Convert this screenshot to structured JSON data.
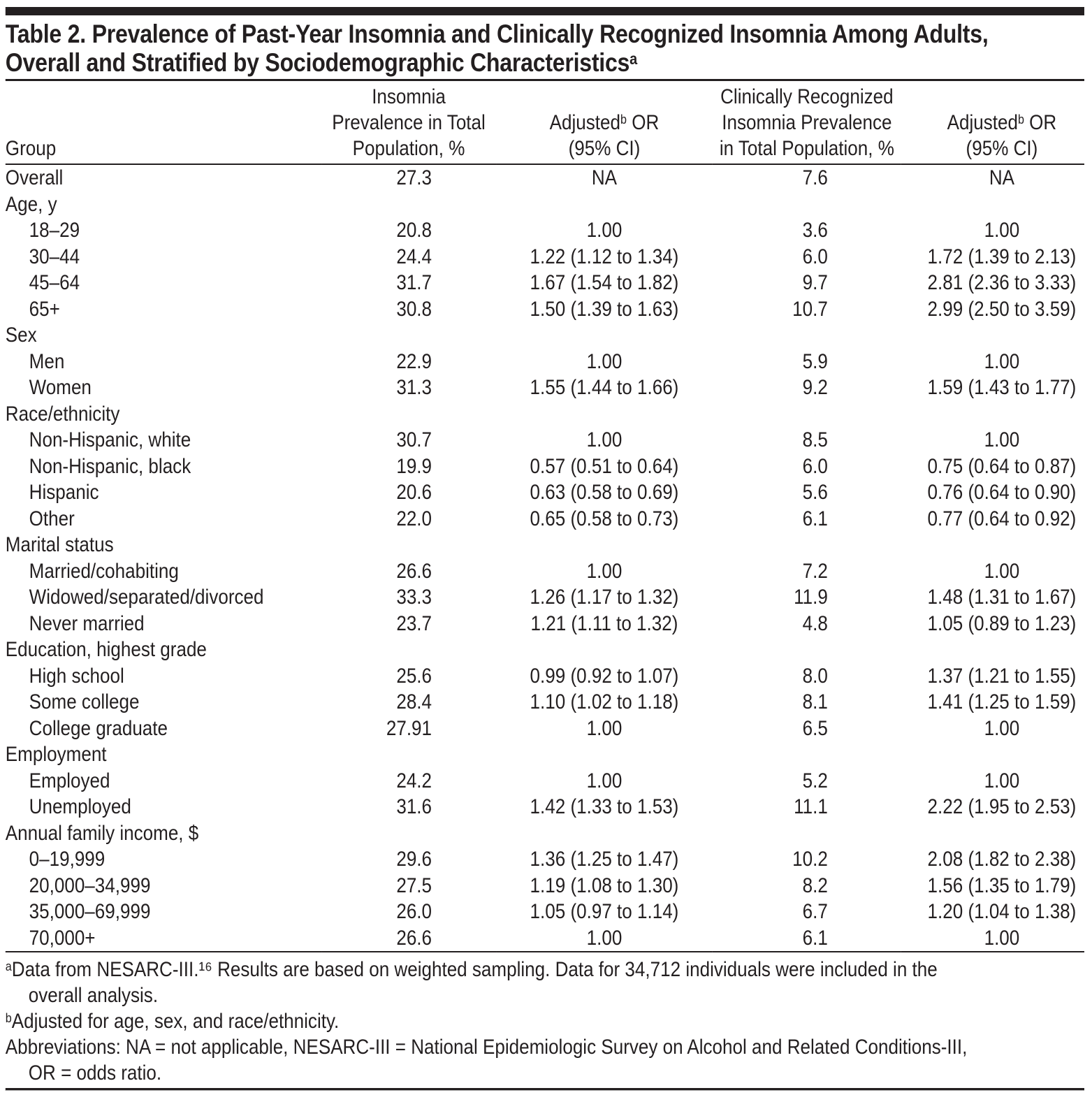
{
  "title": {
    "line1": "Table 2. Prevalence of Past-Year Insomnia and Clinically Recognized Insomnia Among Adults,",
    "line2": "Overall and Stratified by Sociodemographic Characteristics",
    "sup": "a"
  },
  "colors": {
    "text": "#231f20",
    "rules": "#231f20",
    "background": "#ffffff"
  },
  "table": {
    "columns": {
      "group": "Group",
      "insomnia_prevalence": [
        "Insomnia",
        "Prevalence in Total",
        "Population, %"
      ],
      "adjusted_or_1": {
        "pre": "Adjusted",
        "sup": "b",
        "post": " OR",
        "line2": "(95% CI)"
      },
      "clinical_prevalence": [
        "Clinically Recognized",
        "Insomnia Prevalence",
        "in Total Population, %"
      ],
      "adjusted_or_2": {
        "pre": "Adjusted",
        "sup": "b",
        "post": " OR",
        "line2": "(95% CI)"
      }
    },
    "rows": [
      {
        "label": "Overall",
        "indent": false,
        "section": false,
        "c2": "27.3",
        "c3": "NA",
        "c4": "7.6",
        "c5": "NA"
      },
      {
        "label": "Age, y",
        "indent": false,
        "section": true,
        "c2": "",
        "c3": "",
        "c4": "",
        "c5": ""
      },
      {
        "label": "18–29",
        "indent": true,
        "section": false,
        "c2": "20.8",
        "c3": "1.00",
        "c4": "3.6",
        "c5": "1.00"
      },
      {
        "label": "30–44",
        "indent": true,
        "section": false,
        "c2": "24.4",
        "c3": "1.22 (1.12 to 1.34)",
        "c4": "6.0",
        "c5": "1.72 (1.39 to 2.13)"
      },
      {
        "label": "45–64",
        "indent": true,
        "section": false,
        "c2": "31.7",
        "c3": "1.67 (1.54 to 1.82)",
        "c4": "9.7",
        "c5": "2.81 (2.36 to 3.33)"
      },
      {
        "label": "65+",
        "indent": true,
        "section": false,
        "c2": "30.8",
        "c3": "1.50 (1.39 to 1.63)",
        "c4": "10.7",
        "c5": "2.99 (2.50 to 3.59)"
      },
      {
        "label": "Sex",
        "indent": false,
        "section": true,
        "c2": "",
        "c3": "",
        "c4": "",
        "c5": ""
      },
      {
        "label": "Men",
        "indent": true,
        "section": false,
        "c2": "22.9",
        "c3": "1.00",
        "c4": "5.9",
        "c5": "1.00"
      },
      {
        "label": "Women",
        "indent": true,
        "section": false,
        "c2": "31.3",
        "c3": "1.55 (1.44 to 1.66)",
        "c4": "9.2",
        "c5": "1.59 (1.43 to 1.77)"
      },
      {
        "label": "Race/ethnicity",
        "indent": false,
        "section": true,
        "c2": "",
        "c3": "",
        "c4": "",
        "c5": ""
      },
      {
        "label": "Non-Hispanic, white",
        "indent": true,
        "section": false,
        "c2": "30.7",
        "c3": "1.00",
        "c4": "8.5",
        "c5": "1.00"
      },
      {
        "label": "Non-Hispanic, black",
        "indent": true,
        "section": false,
        "c2": "19.9",
        "c3": "0.57 (0.51 to 0.64)",
        "c4": "6.0",
        "c5": "0.75 (0.64 to 0.87)"
      },
      {
        "label": "Hispanic",
        "indent": true,
        "section": false,
        "c2": "20.6",
        "c3": "0.63 (0.58 to 0.69)",
        "c4": "5.6",
        "c5": "0.76 (0.64 to 0.90)"
      },
      {
        "label": "Other",
        "indent": true,
        "section": false,
        "c2": "22.0",
        "c3": "0.65 (0.58 to 0.73)",
        "c4": "6.1",
        "c5": "0.77 (0.64 to 0.92)"
      },
      {
        "label": "Marital status",
        "indent": false,
        "section": true,
        "c2": "",
        "c3": "",
        "c4": "",
        "c5": ""
      },
      {
        "label": "Married/cohabiting",
        "indent": true,
        "section": false,
        "c2": "26.6",
        "c3": "1.00",
        "c4": "7.2",
        "c5": "1.00"
      },
      {
        "label": "Widowed/separated/divorced",
        "indent": true,
        "section": false,
        "c2": "33.3",
        "c3": "1.26 (1.17 to 1.32)",
        "c4": "11.9",
        "c5": "1.48 (1.31 to 1.67)"
      },
      {
        "label": "Never married",
        "indent": true,
        "section": false,
        "c2": "23.7",
        "c3": "1.21 (1.11 to 1.32)",
        "c4": "4.8",
        "c5": "1.05 (0.89 to 1.23)"
      },
      {
        "label": "Education, highest grade",
        "indent": false,
        "section": true,
        "c2": "",
        "c3": "",
        "c4": "",
        "c5": ""
      },
      {
        "label": "High school",
        "indent": true,
        "section": false,
        "c2": "25.6",
        "c3": "0.99 (0.92 to 1.07)",
        "c4": "8.0",
        "c5": "1.37 (1.21 to 1.55)"
      },
      {
        "label": "Some college",
        "indent": true,
        "section": false,
        "c2": "28.4",
        "c3": "1.10 (1.02 to 1.18)",
        "c4": "8.1",
        "c5": "1.41 (1.25 to 1.59)"
      },
      {
        "label": "College graduate",
        "indent": true,
        "section": false,
        "c2": "27.91",
        "c3": "1.00",
        "c4": "6.5",
        "c5": "1.00"
      },
      {
        "label": "Employment",
        "indent": false,
        "section": true,
        "c2": "",
        "c3": "",
        "c4": "",
        "c5": ""
      },
      {
        "label": "Employed",
        "indent": true,
        "section": false,
        "c2": "24.2",
        "c3": "1.00",
        "c4": "5.2",
        "c5": "1.00"
      },
      {
        "label": "Unemployed",
        "indent": true,
        "section": false,
        "c2": "31.6",
        "c3": "1.42 (1.33 to 1.53)",
        "c4": "11.1",
        "c5": "2.22 (1.95 to 2.53)"
      },
      {
        "label": "Annual family income, $",
        "indent": false,
        "section": true,
        "c2": "",
        "c3": "",
        "c4": "",
        "c5": ""
      },
      {
        "label": "0–19,999",
        "indent": true,
        "section": false,
        "c2": "29.6",
        "c3": "1.36 (1.25 to 1.47)",
        "c4": "10.2",
        "c5": "2.08 (1.82 to 2.38)"
      },
      {
        "label": "20,000–34,999",
        "indent": true,
        "section": false,
        "c2": "27.5",
        "c3": "1.19 (1.08 to 1.30)",
        "c4": "8.2",
        "c5": "1.56 (1.35 to 1.79)"
      },
      {
        "label": "35,000–69,999",
        "indent": true,
        "section": false,
        "c2": "26.0",
        "c3": "1.05 (0.97 to 1.14)",
        "c4": "6.7",
        "c5": "1.20 (1.04 to 1.38)"
      },
      {
        "label": "70,000+",
        "indent": true,
        "section": false,
        "c2": "26.6",
        "c3": "1.00",
        "c4": "6.1",
        "c5": "1.00"
      }
    ]
  },
  "footnotes": {
    "a": {
      "marker": "a",
      "line1": "Data from NESARC-III.¹⁶ Results are based on weighted sampling. Data for 34,712 individuals were included in the",
      "line2": "overall analysis."
    },
    "b": {
      "marker": "b",
      "line1": "Adjusted for age, sex, and race/ethnicity."
    },
    "abbreviations": {
      "line1": "Abbreviations: NA = not applicable, NESARC-III = National Epidemiologic Survey on Alcohol and Related Conditions-III,",
      "line2": "OR = odds ratio."
    }
  }
}
